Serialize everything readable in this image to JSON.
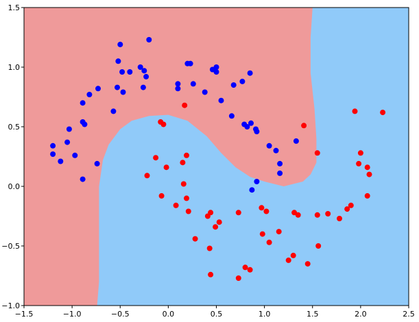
{
  "chart_data": {
    "type": "scatter",
    "title": "",
    "xlabel": "",
    "ylabel": "",
    "xlim": [
      -1.5,
      2.5
    ],
    "ylim": [
      -1.0,
      1.5
    ],
    "grid": false,
    "legend": "none",
    "xticks": [
      -1.5,
      -1.0,
      -0.5,
      0.0,
      0.5,
      1.0,
      1.5,
      2.0,
      2.5
    ],
    "xtick_labels": [
      "−1.5",
      "−1.0",
      "−0.5",
      "0.0",
      "0.5",
      "1.0",
      "1.5",
      "2.0",
      "2.5"
    ],
    "yticks": [
      -1.0,
      -0.5,
      0.0,
      0.5,
      1.0,
      1.5
    ],
    "ytick_labels": [
      "−1.0",
      "−0.5",
      "0.0",
      "0.5",
      "1.0",
      "1.5"
    ],
    "colors": {
      "region_red": "#ef9a9a",
      "region_blue": "#90caf9",
      "point_red": "#ff0000",
      "point_blue": "#0000ff"
    },
    "decision_regions": {
      "red_region_boundary": [
        [
          -1.5,
          1.5
        ],
        [
          1.5,
          1.5
        ],
        [
          1.48,
          1.25
        ],
        [
          1.48,
          0.95
        ],
        [
          1.52,
          0.65
        ],
        [
          1.54,
          0.4
        ],
        [
          1.54,
          0.2
        ],
        [
          1.48,
          0.1
        ],
        [
          1.4,
          0.04
        ],
        [
          1.2,
          0.0
        ],
        [
          1.0,
          0.04
        ],
        [
          0.85,
          0.08
        ],
        [
          0.7,
          0.16
        ],
        [
          0.55,
          0.28
        ],
        [
          0.4,
          0.42
        ],
        [
          0.2,
          0.55
        ],
        [
          0.0,
          0.6
        ],
        [
          -0.2,
          0.59
        ],
        [
          -0.38,
          0.55
        ],
        [
          -0.5,
          0.48
        ],
        [
          -0.62,
          0.35
        ],
        [
          -0.68,
          0.22
        ],
        [
          -0.72,
          0.0
        ],
        [
          -0.72,
          -0.2
        ],
        [
          -0.72,
          -0.5
        ],
        [
          -0.72,
          -0.8
        ],
        [
          -0.74,
          -1.0
        ],
        [
          -1.5,
          -1.0
        ]
      ]
    },
    "series": [
      {
        "color": "point_red",
        "points": [
          [
            0.17,
            0.68
          ],
          [
            1.41,
            0.51
          ],
          [
            -0.08,
            0.54
          ],
          [
            -0.05,
            0.52
          ],
          [
            1.94,
            0.63
          ],
          [
            2.23,
            0.62
          ],
          [
            1.55,
            0.28
          ],
          [
            2.0,
            0.28
          ],
          [
            -0.13,
            0.24
          ],
          [
            0.19,
            0.26
          ],
          [
            0.15,
            0.2
          ],
          [
            -0.02,
            0.16
          ],
          [
            1.98,
            0.19
          ],
          [
            2.07,
            0.16
          ],
          [
            -0.22,
            0.09
          ],
          [
            2.09,
            0.1
          ],
          [
            0.16,
            0.02
          ],
          [
            -0.07,
            -0.08
          ],
          [
            0.19,
            -0.1
          ],
          [
            2.07,
            -0.08
          ],
          [
            1.9,
            -0.16
          ],
          [
            0.08,
            -0.16
          ],
          [
            1.86,
            -0.19
          ],
          [
            0.97,
            -0.18
          ],
          [
            1.02,
            -0.21
          ],
          [
            0.21,
            -0.21
          ],
          [
            0.44,
            -0.22
          ],
          [
            0.73,
            -0.22
          ],
          [
            1.31,
            -0.22
          ],
          [
            1.35,
            -0.24
          ],
          [
            1.55,
            -0.24
          ],
          [
            1.66,
            -0.23
          ],
          [
            1.78,
            -0.27
          ],
          [
            0.41,
            -0.25
          ],
          [
            0.49,
            -0.34
          ],
          [
            0.53,
            -0.3
          ],
          [
            0.98,
            -0.4
          ],
          [
            1.15,
            -0.38
          ],
          [
            0.28,
            -0.44
          ],
          [
            1.05,
            -0.47
          ],
          [
            0.43,
            -0.52
          ],
          [
            1.56,
            -0.5
          ],
          [
            1.3,
            -0.58
          ],
          [
            1.25,
            -0.62
          ],
          [
            1.45,
            -0.65
          ],
          [
            0.8,
            -0.68
          ],
          [
            0.85,
            -0.7
          ],
          [
            0.44,
            -0.74
          ],
          [
            0.73,
            -0.77
          ]
        ]
      },
      {
        "color": "point_blue",
        "points": [
          [
            -0.2,
            1.23
          ],
          [
            -0.5,
            1.19
          ],
          [
            -0.52,
            1.05
          ],
          [
            -0.29,
            1.0
          ],
          [
            -0.48,
            0.96
          ],
          [
            -0.4,
            0.96
          ],
          [
            -0.25,
            0.97
          ],
          [
            -0.23,
            0.92
          ],
          [
            0.2,
            1.03
          ],
          [
            0.23,
            1.03
          ],
          [
            0.46,
            0.98
          ],
          [
            0.5,
            0.96
          ],
          [
            0.5,
            1.0
          ],
          [
            0.85,
            0.95
          ],
          [
            -0.73,
            0.82
          ],
          [
            -0.53,
            0.83
          ],
          [
            -0.26,
            0.83
          ],
          [
            -0.82,
            0.77
          ],
          [
            -0.47,
            0.79
          ],
          [
            0.1,
            0.86
          ],
          [
            0.1,
            0.82
          ],
          [
            0.26,
            0.86
          ],
          [
            0.38,
            0.79
          ],
          [
            0.68,
            0.85
          ],
          [
            0.77,
            0.88
          ],
          [
            -0.89,
            0.7
          ],
          [
            0.55,
            0.72
          ],
          [
            -0.57,
            0.63
          ],
          [
            0.66,
            0.59
          ],
          [
            -0.89,
            0.54
          ],
          [
            -0.87,
            0.52
          ],
          [
            0.79,
            0.52
          ],
          [
            0.82,
            0.5
          ],
          [
            0.86,
            0.53
          ],
          [
            0.91,
            0.48
          ],
          [
            0.92,
            0.46
          ],
          [
            -1.03,
            0.48
          ],
          [
            1.33,
            0.38
          ],
          [
            -1.2,
            0.34
          ],
          [
            1.05,
            0.34
          ],
          [
            -1.05,
            0.37
          ],
          [
            1.12,
            0.3
          ],
          [
            -1.2,
            0.27
          ],
          [
            -0.97,
            0.26
          ],
          [
            1.16,
            0.19
          ],
          [
            -0.74,
            0.19
          ],
          [
            -1.12,
            0.21
          ],
          [
            1.16,
            0.11
          ],
          [
            -0.89,
            0.06
          ],
          [
            0.92,
            0.04
          ],
          [
            0.87,
            -0.03
          ]
        ]
      }
    ]
  }
}
